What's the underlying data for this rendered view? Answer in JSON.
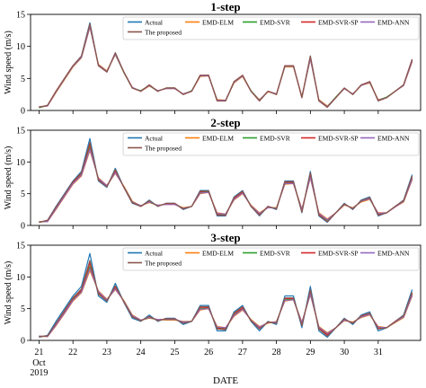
{
  "chart_data": [
    {
      "type": "line",
      "title": "1-step",
      "ylabel": "Wind speed (m/s)",
      "xlabel": "",
      "ylim": [
        0,
        15
      ],
      "yticks": [
        0,
        5,
        10,
        15
      ],
      "legend_placement": "top-right",
      "x_hours": [
        0,
        6,
        12,
        18,
        24,
        30,
        36,
        42,
        48,
        54,
        60,
        66,
        72,
        78,
        84,
        90,
        96,
        102,
        108,
        114,
        120,
        126,
        132,
        138,
        144,
        150,
        156,
        162,
        168,
        174,
        180,
        186,
        192,
        198,
        204,
        210,
        216,
        222,
        228,
        234,
        240,
        246,
        252,
        258,
        264
      ],
      "series": [
        {
          "name": "Actual",
          "values": [
            0.5,
            0.8,
            3,
            5,
            7,
            8.5,
            13.7,
            7,
            6,
            9,
            6,
            3.5,
            3,
            4,
            3,
            3.5,
            3.5,
            2.5,
            3,
            5.5,
            5.5,
            1.5,
            1.5,
            4.5,
            5.5,
            3,
            1.5,
            3,
            2.5,
            7,
            7,
            2,
            8.5,
            1.5,
            0.5,
            2,
            3.5,
            2.5,
            4,
            4.5,
            1.5,
            2,
            3,
            4,
            8
          ]
        },
        {
          "name": "EMD-ELM",
          "values": [
            0.5,
            0.7,
            2.8,
            4.8,
            6.8,
            8.2,
            13,
            7.2,
            6.2,
            8.7,
            6,
            3.6,
            3,
            3.8,
            3.1,
            3.4,
            3.4,
            2.6,
            3,
            5.3,
            5.4,
            1.7,
            1.6,
            4.3,
            5.3,
            3,
            1.7,
            2.9,
            2.6,
            6.8,
            6.8,
            2.2,
            8,
            1.7,
            0.7,
            2,
            3.4,
            2.6,
            3.9,
            4.3,
            1.7,
            2,
            3,
            3.9,
            7.6
          ]
        },
        {
          "name": "EMD-SVR",
          "values": [
            0.4,
            0.8,
            2.9,
            4.9,
            6.9,
            8.3,
            13.2,
            7.1,
            6.1,
            8.8,
            5.9,
            3.5,
            3.1,
            3.9,
            3,
            3.5,
            3.5,
            2.5,
            3.1,
            5.4,
            5.5,
            1.6,
            1.5,
            4.4,
            5.4,
            3.1,
            1.6,
            3,
            2.5,
            6.9,
            6.9,
            2.1,
            8.2,
            1.6,
            0.6,
            2.1,
            3.5,
            2.5,
            4,
            4.4,
            1.6,
            2.1,
            3,
            4,
            7.8
          ]
        },
        {
          "name": "EMD-SVR-SP",
          "values": [
            0.5,
            0.8,
            3,
            5,
            7,
            8.4,
            13.4,
            7,
            6,
            8.9,
            6,
            3.5,
            3,
            4,
            3,
            3.5,
            3.5,
            2.5,
            3,
            5.5,
            5.5,
            1.5,
            1.5,
            4.5,
            5.5,
            3,
            1.5,
            3,
            2.5,
            7,
            7,
            2,
            8.4,
            1.5,
            0.5,
            2,
            3.5,
            2.5,
            4,
            4.5,
            1.5,
            2,
            3,
            4,
            7.9
          ]
        },
        {
          "name": "EMD-ANN",
          "values": [
            0.6,
            0.7,
            2.9,
            4.9,
            6.9,
            8.3,
            13.1,
            7.1,
            6.1,
            8.8,
            6,
            3.6,
            3,
            3.9,
            3.1,
            3.4,
            3.4,
            2.6,
            3,
            5.4,
            5.4,
            1.6,
            1.6,
            4.4,
            5.4,
            3,
            1.6,
            3,
            2.6,
            6.9,
            6.9,
            2.1,
            8.1,
            1.6,
            0.6,
            2,
            3.4,
            2.6,
            3.9,
            4.4,
            1.6,
            2,
            3,
            3.9,
            7.7
          ]
        },
        {
          "name": "The proposed",
          "values": [
            0.5,
            0.8,
            3,
            5,
            7,
            8.5,
            13.5,
            7,
            6,
            9,
            6,
            3.5,
            3,
            4,
            3,
            3.5,
            3.5,
            2.5,
            3,
            5.5,
            5.5,
            1.5,
            1.5,
            4.5,
            5.5,
            3,
            1.5,
            3,
            2.5,
            7,
            7,
            2,
            8.5,
            1.5,
            0.5,
            2,
            3.5,
            2.5,
            4,
            4.5,
            1.5,
            2,
            3,
            4,
            8
          ]
        }
      ]
    },
    {
      "type": "line",
      "title": "2-step",
      "ylabel": "Wind speed (m/s)",
      "xlabel": "",
      "ylim": [
        0,
        15
      ],
      "yticks": [
        0,
        5,
        10,
        15
      ],
      "legend_placement": "top-right",
      "x_hours": [
        0,
        6,
        12,
        18,
        24,
        30,
        36,
        42,
        48,
        54,
        60,
        66,
        72,
        78,
        84,
        90,
        96,
        102,
        108,
        114,
        120,
        126,
        132,
        138,
        144,
        150,
        156,
        162,
        168,
        174,
        180,
        186,
        192,
        198,
        204,
        210,
        216,
        222,
        228,
        234,
        240,
        246,
        252,
        258,
        264
      ],
      "series": [
        {
          "name": "Actual",
          "values": [
            0.5,
            0.8,
            3,
            5,
            7,
            8.5,
            13.7,
            7,
            6,
            9,
            6,
            3.5,
            3,
            4,
            3,
            3.5,
            3.5,
            2.5,
            3,
            5.5,
            5.5,
            1.5,
            1.5,
            4.5,
            5.5,
            3,
            1.5,
            3,
            2.5,
            7,
            7,
            2,
            8.5,
            1.5,
            0.5,
            2,
            3.5,
            2.5,
            4,
            4.5,
            1.5,
            2,
            3,
            4,
            8
          ]
        },
        {
          "name": "EMD-ELM",
          "values": [
            0.6,
            0.6,
            2.5,
            4.5,
            6.5,
            7.8,
            11.8,
            7.5,
            6.3,
            8.2,
            6.2,
            3.8,
            3.1,
            3.6,
            3.2,
            3.3,
            3.3,
            2.8,
            3,
            5,
            5.2,
            2,
            1.8,
            4,
            5,
            3.2,
            2,
            2.8,
            2.8,
            6.5,
            6.6,
            2.6,
            7.5,
            2,
            1,
            2,
            3.2,
            2.8,
            3.7,
            4.1,
            2,
            2,
            2.9,
            3.7,
            7.2
          ]
        },
        {
          "name": "EMD-SVR",
          "values": [
            0.5,
            0.7,
            2.7,
            4.7,
            6.7,
            8,
            12.3,
            7.3,
            6.2,
            8.4,
            6.1,
            3.7,
            3.1,
            3.7,
            3.1,
            3.4,
            3.4,
            2.7,
            3,
            5.2,
            5.3,
            1.8,
            1.7,
            4.2,
            5.2,
            3.1,
            1.8,
            2.9,
            2.7,
            6.7,
            6.7,
            2.4,
            7.8,
            1.8,
            0.8,
            2,
            3.3,
            2.7,
            3.8,
            4.2,
            1.8,
            2,
            3,
            3.8,
            7.4
          ]
        },
        {
          "name": "EMD-SVR-SP",
          "values": [
            0.5,
            0.8,
            2.8,
            4.8,
            6.8,
            8.2,
            12.8,
            7.2,
            6.1,
            8.6,
            6,
            3.6,
            3,
            3.8,
            3.1,
            3.4,
            3.4,
            2.6,
            3,
            5.3,
            5.4,
            1.7,
            1.6,
            4.3,
            5.3,
            3,
            1.7,
            3,
            2.6,
            6.8,
            6.8,
            2.2,
            8.1,
            1.7,
            0.6,
            2,
            3.4,
            2.6,
            3.9,
            4.3,
            1.7,
            2,
            3,
            3.9,
            7.6
          ]
        },
        {
          "name": "EMD-ANN",
          "values": [
            0.6,
            0.6,
            2.6,
            4.6,
            6.6,
            7.9,
            12,
            7.4,
            6.3,
            8.3,
            6.1,
            3.7,
            3.1,
            3.7,
            3.2,
            3.3,
            3.3,
            2.7,
            3,
            5.1,
            5.2,
            1.9,
            1.8,
            4.1,
            5.1,
            3.1,
            1.9,
            2.8,
            2.7,
            6.6,
            6.6,
            2.5,
            7.6,
            1.9,
            0.9,
            2,
            3.3,
            2.7,
            3.8,
            4.2,
            1.9,
            2,
            2.9,
            3.8,
            7.3
          ]
        },
        {
          "name": "The proposed",
          "values": [
            0.5,
            0.8,
            2.9,
            4.9,
            6.9,
            8.3,
            13.1,
            7.1,
            6.1,
            8.8,
            6,
            3.6,
            3,
            3.9,
            3,
            3.5,
            3.5,
            2.6,
            3,
            5.4,
            5.4,
            1.6,
            1.6,
            4.4,
            5.4,
            3,
            1.6,
            3,
            2.6,
            6.9,
            6.9,
            2.1,
            8.3,
            1.6,
            0.6,
            2,
            3.4,
            2.6,
            3.9,
            4.4,
            1.6,
            2,
            3,
            3.9,
            7.8
          ]
        }
      ]
    },
    {
      "type": "line",
      "title": "3-step",
      "ylabel": "Wind speed (m/s)",
      "xlabel": "DATE",
      "ylim": [
        0,
        15
      ],
      "yticks": [
        0,
        5,
        10,
        15
      ],
      "legend_placement": "top-right",
      "xtick_labels": [
        "21",
        "22",
        "23",
        "24",
        "25",
        "26",
        "27",
        "28",
        "29",
        "30",
        "31"
      ],
      "xtick_sublabels": [
        "Oct",
        "2019"
      ],
      "x_hours": [
        0,
        6,
        12,
        18,
        24,
        30,
        36,
        42,
        48,
        54,
        60,
        66,
        72,
        78,
        84,
        90,
        96,
        102,
        108,
        114,
        120,
        126,
        132,
        138,
        144,
        150,
        156,
        162,
        168,
        174,
        180,
        186,
        192,
        198,
        204,
        210,
        216,
        222,
        228,
        234,
        240,
        246,
        252,
        258,
        264
      ],
      "series": [
        {
          "name": "Actual",
          "values": [
            0.5,
            0.8,
            3,
            5,
            7,
            8.5,
            13.7,
            7,
            6,
            9,
            6,
            3.5,
            3,
            4,
            3,
            3.5,
            3.5,
            2.5,
            3,
            5.5,
            5.5,
            1.5,
            1.5,
            4.5,
            5.5,
            3,
            1.5,
            3,
            2.5,
            7,
            7,
            2,
            8.5,
            1.5,
            0.5,
            2,
            3.5,
            2.5,
            4,
            4.5,
            1.5,
            2,
            3,
            4,
            8
          ]
        },
        {
          "name": "EMD-ELM",
          "values": [
            0.7,
            0.6,
            2.3,
            4.2,
            6.2,
            7.5,
            11,
            7.8,
            6.5,
            8,
            6.3,
            4,
            3.2,
            3.5,
            3.3,
            3.2,
            3.2,
            3,
            3,
            4.8,
            5,
            2.2,
            2,
            3.8,
            4.8,
            3.3,
            2.2,
            2.7,
            3,
            6.2,
            6.4,
            2.9,
            7.2,
            2.2,
            1.2,
            2,
            3.1,
            2.9,
            3.6,
            4,
            2.2,
            2,
            2.8,
            3.6,
            7
          ]
        },
        {
          "name": "EMD-SVR",
          "values": [
            0.6,
            0.7,
            2.5,
            4.4,
            6.4,
            7.7,
            11.6,
            7.6,
            6.4,
            8.2,
            6.2,
            3.9,
            3.1,
            3.6,
            3.2,
            3.3,
            3.3,
            2.9,
            3,
            5,
            5.1,
            2,
            1.9,
            4,
            5,
            3.2,
            2,
            2.8,
            2.9,
            6.4,
            6.5,
            2.7,
            7.4,
            2,
            1,
            2,
            3.2,
            2.8,
            3.7,
            4.1,
            2,
            2,
            2.9,
            3.7,
            7.2
          ]
        },
        {
          "name": "EMD-SVR-SP",
          "values": [
            0.6,
            0.7,
            2.6,
            4.6,
            6.6,
            7.9,
            12.2,
            7.4,
            6.3,
            8.4,
            6.1,
            3.8,
            3.1,
            3.7,
            3.2,
            3.4,
            3.4,
            2.8,
            3,
            5.2,
            5.2,
            1.9,
            1.8,
            4.2,
            5.1,
            3.1,
            1.9,
            2.9,
            2.8,
            6.6,
            6.6,
            2.5,
            7.7,
            1.9,
            0.9,
            2,
            3.3,
            2.7,
            3.8,
            4.2,
            1.9,
            2,
            3,
            3.8,
            7.4
          ]
        },
        {
          "name": "EMD-ANN",
          "values": [
            0.7,
            0.6,
            2.4,
            4.3,
            6.3,
            7.6,
            11.3,
            7.7,
            6.4,
            8.1,
            6.2,
            3.9,
            3.2,
            3.6,
            3.3,
            3.3,
            3.3,
            2.9,
            3,
            4.9,
            5,
            2.1,
            2,
            3.9,
            4.9,
            3.2,
            2.1,
            2.8,
            2.9,
            6.3,
            6.4,
            2.8,
            7.3,
            2.1,
            1.1,
            2,
            3.2,
            2.8,
            3.7,
            4.1,
            2.1,
            2,
            2.9,
            3.7,
            7.1
          ]
        },
        {
          "name": "The proposed",
          "values": [
            0.6,
            0.7,
            2.7,
            4.7,
            6.7,
            8.1,
            12.6,
            7.3,
            6.2,
            8.6,
            6.1,
            3.7,
            3.1,
            3.8,
            3.1,
            3.4,
            3.4,
            2.7,
            3,
            5.3,
            5.3,
            1.8,
            1.7,
            4.3,
            5.3,
            3.1,
            1.8,
            2.9,
            2.7,
            6.7,
            6.7,
            2.3,
            8,
            1.8,
            0.7,
            2,
            3.4,
            2.7,
            3.9,
            4.3,
            1.8,
            2,
            3,
            3.9,
            7.6
          ]
        }
      ]
    }
  ],
  "colors": {
    "Actual": "#1f77b4",
    "EMD-ELM": "#ff7f0e",
    "EMD-SVR": "#2ca02c",
    "EMD-SVR-SP": "#d62728",
    "EMD-ANN": "#9467bd",
    "The proposed": "#8c564b"
  }
}
